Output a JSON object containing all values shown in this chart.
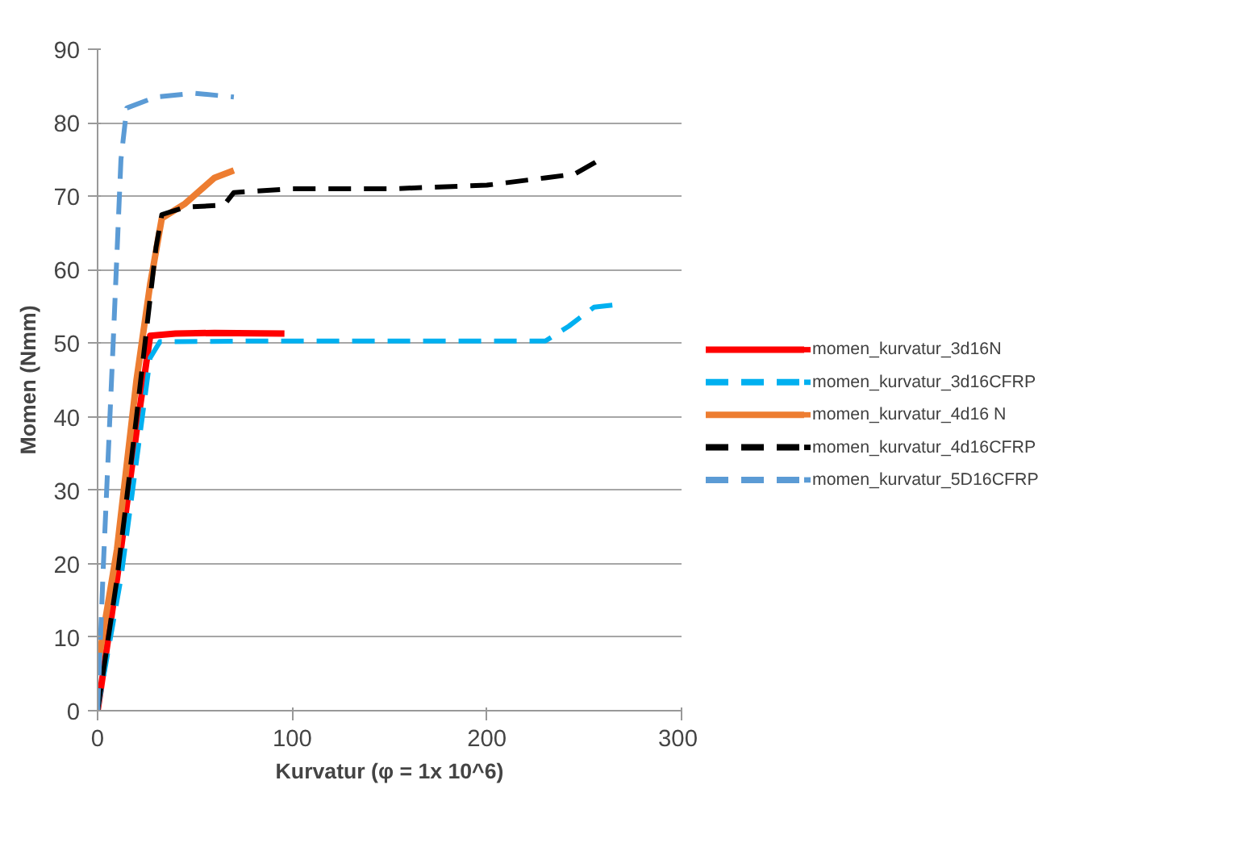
{
  "chart_data": {
    "type": "line",
    "xlabel": "Kurvatur (φ = 1x 10^6)",
    "ylabel": "Momen (Nmm)",
    "xlim": [
      0,
      300
    ],
    "xticks": [
      0,
      100,
      200,
      300
    ],
    "ylim": [
      0,
      90
    ],
    "yticks": [
      0,
      10,
      20,
      30,
      40,
      50,
      60,
      70,
      80,
      90
    ],
    "grid": "y",
    "legend": "right",
    "series": [
      {
        "name": "momen_kurvatur_3d16N",
        "color": "#ff0000",
        "line_style": "solid",
        "x": [
          0,
          10,
          20,
          27,
          40,
          60,
          96
        ],
        "values": [
          0,
          18,
          38,
          51,
          51.3,
          51.4,
          51.3
        ]
      },
      {
        "name": "momen_kurvatur_3d16CFRP",
        "color": "#00b0f0",
        "line_style": "dashed",
        "x": [
          0,
          12,
          22,
          27,
          32,
          80,
          150,
          230,
          242,
          255,
          268
        ],
        "values": [
          0,
          18,
          38,
          48,
          50.2,
          50.3,
          50.3,
          50.3,
          52.3,
          54.9,
          55.3
        ]
      },
      {
        "name": "momen_kurvatur_4d16 N",
        "color": "#ed7d31",
        "line_style": "solid",
        "x": [
          0,
          10,
          20,
          27,
          33,
          45,
          60,
          70
        ],
        "values": [
          6,
          22,
          45,
          58,
          67,
          69,
          72.5,
          73.5
        ]
      },
      {
        "name": "momen_kurvatur_4d16CFRP",
        "color": "#000000",
        "line_style": "dashed",
        "x": [
          0,
          10,
          20,
          30,
          33,
          45,
          65,
          70,
          100,
          150,
          200,
          230,
          245,
          255,
          258
        ],
        "values": [
          0,
          18,
          40,
          63,
          67.5,
          68.5,
          68.8,
          70.5,
          71,
          71,
          71.5,
          72.5,
          73,
          74.5,
          75
        ]
      },
      {
        "name": "momen_kurvatur_5D16CFRP",
        "color": "#5b9bd5",
        "line_style": "dashed",
        "x": [
          0,
          3,
          8,
          12,
          15,
          30,
          50,
          70
        ],
        "values": [
          0,
          20,
          50,
          75,
          82,
          83.5,
          84,
          83.5
        ]
      }
    ]
  }
}
